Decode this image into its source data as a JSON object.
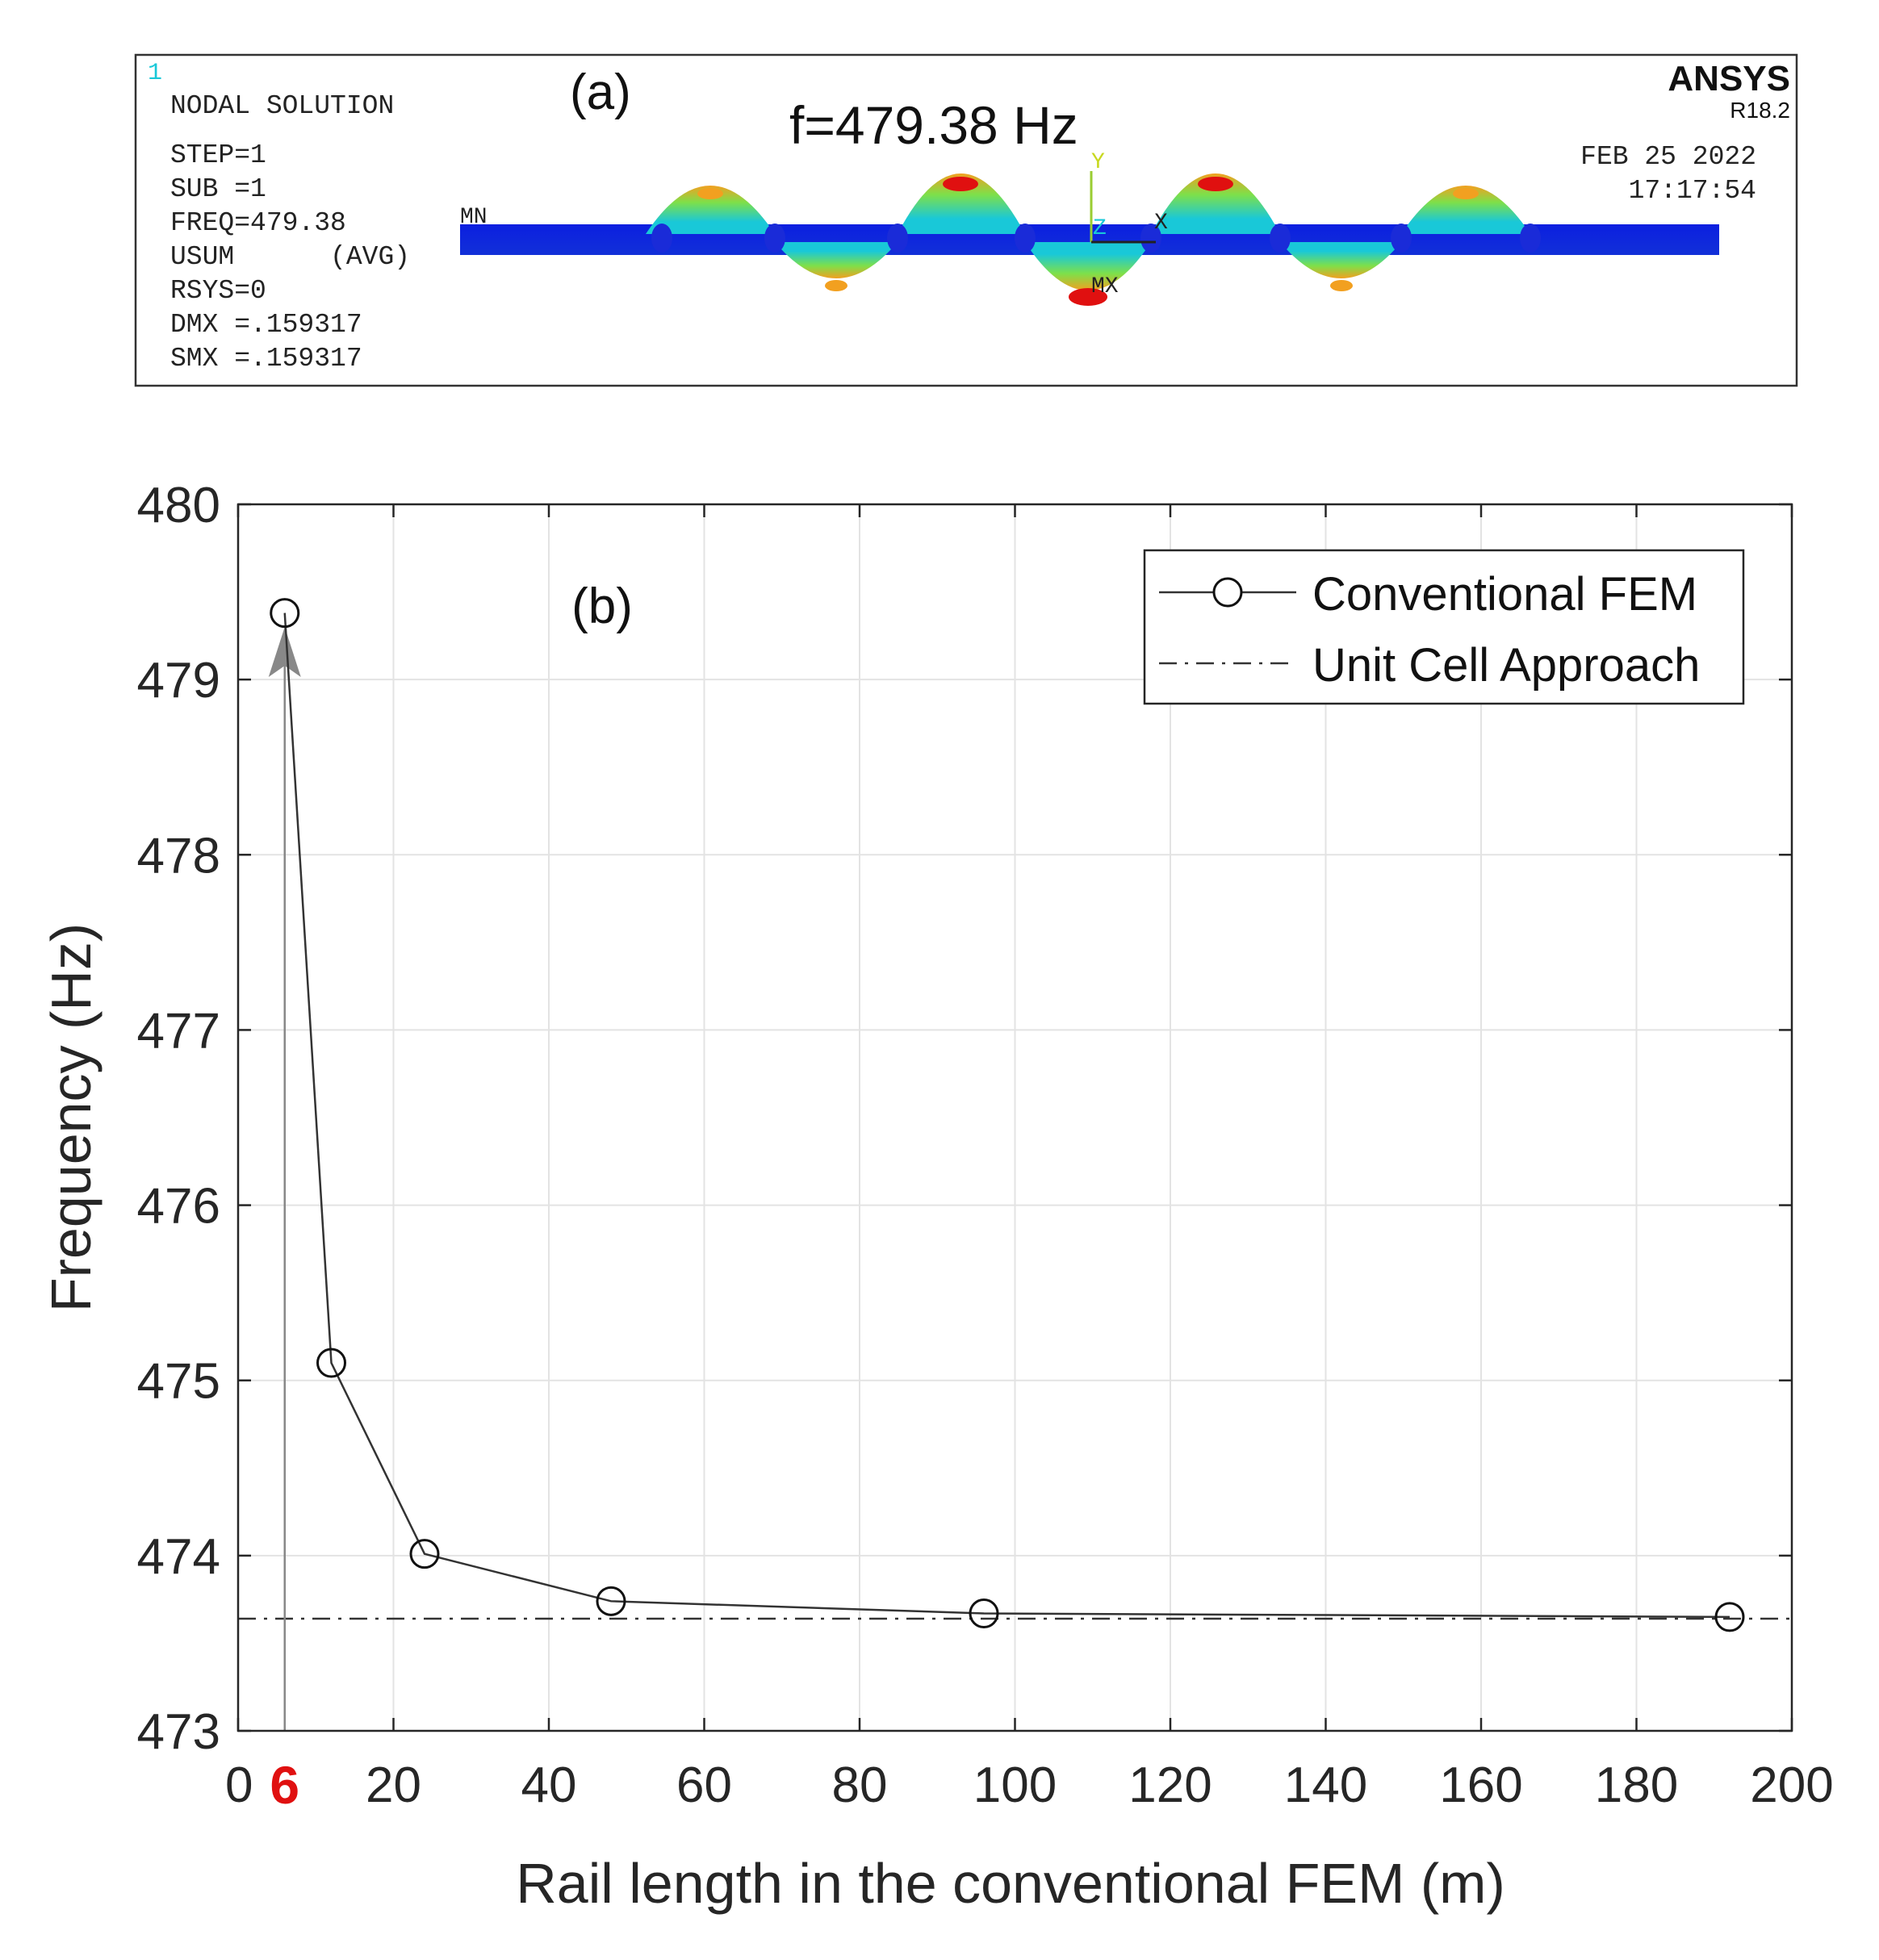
{
  "panel_a": {
    "label": "(a)",
    "window_number": "1",
    "nodal_title": "NODAL SOLUTION",
    "info_lines": [
      "STEP=1",
      "SUB =1",
      "FREQ=479.38",
      "USUM      (AVG)",
      "RSYS=0",
      "DMX =.159317",
      "SMX =.159317"
    ],
    "brand": "ANSYS",
    "version": "R18.2",
    "date": "FEB 25 2022",
    "time": "17:17:54",
    "frequency_label": "f=479.38 Hz",
    "mn_label": "MN",
    "mx_label": "MX",
    "axis_y": "Y",
    "axis_z": "Z",
    "axis_x": "X",
    "colors": {
      "low": "#0b1fe0",
      "mid": "#19c8d8",
      "midhigh": "#7de04a",
      "high": "#f2a020",
      "max": "#e01010"
    }
  },
  "chart_data": {
    "type": "line",
    "panel_label": "(b)",
    "xlabel": "Rail length in the conventional FEM (m)",
    "ylabel": "Frequency (Hz)",
    "xlim": [
      0,
      200
    ],
    "ylim": [
      473,
      480
    ],
    "xticks": [
      "0",
      "20",
      "40",
      "60",
      "80",
      "100",
      "120",
      "140",
      "160",
      "180",
      "200"
    ],
    "yticks": [
      "473",
      "474",
      "475",
      "476",
      "477",
      "478",
      "479",
      "480"
    ],
    "highlight_tick": {
      "x": 6,
      "label": "6",
      "color": "#e01010"
    },
    "grid": true,
    "legend_position": "top-right",
    "series": [
      {
        "name": "Conventional FEM",
        "style": "solid-circle-markers",
        "color": "#333333",
        "x": [
          6,
          12,
          24,
          48,
          96,
          192
        ],
        "y": [
          479.38,
          475.1,
          474.01,
          473.74,
          473.67,
          473.65
        ]
      },
      {
        "name": "Unit Cell Approach",
        "style": "dash-dot",
        "color": "#333333",
        "x": [
          0,
          200
        ],
        "y": [
          473.64,
          473.64
        ]
      }
    ],
    "annotation": {
      "type": "arrow",
      "x": 6,
      "y_from": 473,
      "y_to": 479.3,
      "color": "#888888"
    }
  }
}
